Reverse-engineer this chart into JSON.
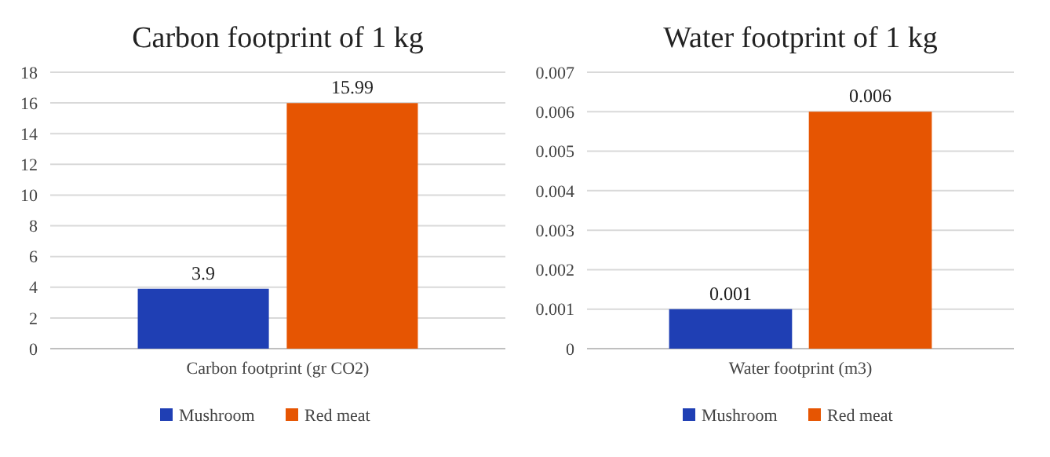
{
  "chart_data": [
    {
      "type": "bar",
      "title": "Carbon footprint of 1 kg",
      "categories": [
        "Carbon footprint (gr CO2)"
      ],
      "series": [
        {
          "name": "Mushroom",
          "color": "#1f3fb4",
          "values": [
            3.9
          ]
        },
        {
          "name": "Red meat",
          "color": "#e65502",
          "values": [
            15.99
          ]
        }
      ],
      "ylim": [
        0,
        18
      ],
      "yticks": [
        0,
        2,
        4,
        6,
        8,
        10,
        12,
        14,
        16,
        18
      ],
      "grid": "y",
      "legend": "bottom",
      "data_labels": true
    },
    {
      "type": "bar",
      "title": "Water footprint of 1 kg",
      "categories": [
        "Water footprint (m3)"
      ],
      "series": [
        {
          "name": "Mushroom",
          "color": "#1f3fb4",
          "values": [
            0.001
          ]
        },
        {
          "name": "Red meat",
          "color": "#e65502",
          "values": [
            0.006
          ]
        }
      ],
      "ylim": [
        0,
        0.007
      ],
      "yticks": [
        0,
        0.001,
        0.002,
        0.003,
        0.004,
        0.005,
        0.006,
        0.007
      ],
      "grid": "y",
      "legend": "bottom",
      "data_labels": true
    }
  ]
}
